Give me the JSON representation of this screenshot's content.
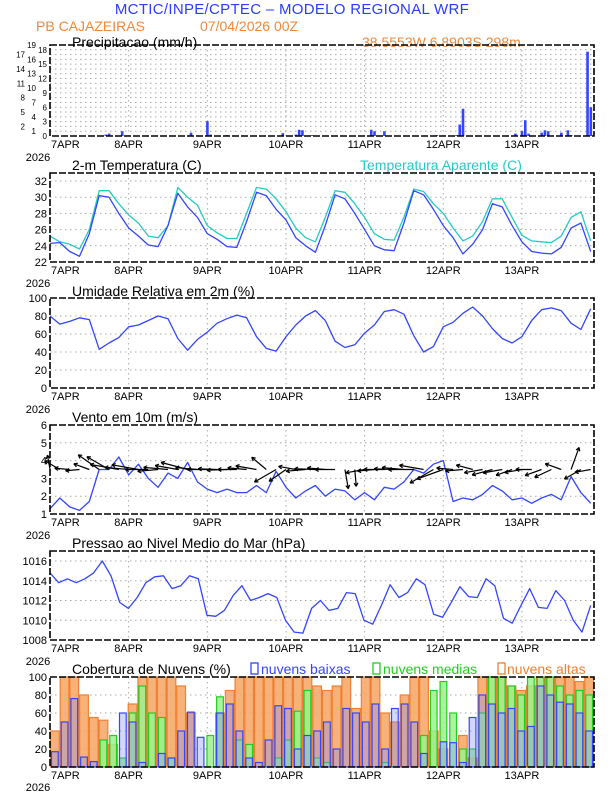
{
  "header": {
    "title": "MCTIC/INPE/CPTEC – MODELO REGIONAL WRF",
    "station": "PB CAJAZEIRAS",
    "run": "07/04/2026 00Z",
    "location": "38.5553W 6.8903S 298m"
  },
  "colors": {
    "blue": "#3346ff",
    "cyan": "#22ccc4",
    "orange_fill": "#f6a462",
    "orange_line": "#f08030",
    "green_fill": "#9ff08f",
    "green_line": "#1ed01e",
    "low_fill": "#7f8cff"
  },
  "x_axis": {
    "days": [
      "7APR",
      "8APR",
      "9APR",
      "10APR",
      "11APR",
      "12APR",
      "13APR"
    ],
    "year": "2026",
    "hours_span": 166,
    "step_hours": 3
  },
  "chart_data": [
    {
      "id": "precip",
      "type": "bar",
      "title": "Precipitacao (mm/h)",
      "ylim": [
        0,
        19
      ],
      "yticks": [
        0,
        1,
        2,
        3,
        4,
        5,
        6,
        7,
        8,
        9,
        10,
        11,
        12,
        13,
        14,
        15,
        16,
        17,
        18,
        19
      ],
      "bars": [
        [
          17,
          0.3
        ],
        [
          18,
          0.5
        ],
        [
          22,
          1.0
        ],
        [
          43,
          0.7
        ],
        [
          48,
          3.1
        ],
        [
          49,
          0.3
        ],
        [
          54,
          0.2
        ],
        [
          71,
          0.6
        ],
        [
          75,
          0.3
        ],
        [
          76,
          1.3
        ],
        [
          77,
          1.2
        ],
        [
          80,
          0.2
        ],
        [
          98,
          1.3
        ],
        [
          99,
          1.0
        ],
        [
          102,
          1.0
        ],
        [
          118,
          0.2
        ],
        [
          124,
          0.2
        ],
        [
          125,
          2.4
        ],
        [
          126,
          5.7
        ],
        [
          142,
          0.5
        ],
        [
          144,
          1.0
        ],
        [
          145,
          3.3
        ],
        [
          146,
          0.5
        ],
        [
          150,
          0.7
        ],
        [
          151,
          1.2
        ],
        [
          152,
          1.0
        ],
        [
          156,
          0.7
        ],
        [
          158,
          1.2
        ],
        [
          159,
          0.2
        ],
        [
          164,
          17.6
        ],
        [
          165,
          6.0
        ]
      ]
    },
    {
      "id": "temperature",
      "type": "line",
      "title": "2-m Temperatura (C)",
      "ylim": [
        22,
        32
      ],
      "yticks": [
        22,
        24,
        26,
        28,
        30,
        32
      ],
      "series": [
        {
          "name": "2-m Temperatura (C)",
          "values": [
            24.3,
            24.4,
            23.3,
            22.7,
            25.5,
            30.2,
            30.0,
            28.0,
            26.2,
            25.2,
            24.1,
            23.9,
            26.5,
            30.5,
            28.8,
            27.5,
            25.5,
            24.8,
            23.9,
            23.8,
            27.0,
            30.6,
            30.2,
            28.5,
            27.2,
            25.0,
            24.0,
            23.2,
            26.5,
            30.3,
            29.8,
            28.0,
            26.0,
            24.0,
            23.5,
            23.4,
            26.8,
            30.8,
            30.3,
            28.5,
            26.5,
            25.0,
            23.0,
            24.2,
            26.0,
            29.2,
            28.8,
            26.5,
            24.5,
            23.3,
            23.1,
            23.0,
            23.8,
            26.2,
            26.8,
            23.3
          ]
        },
        {
          "name": "Temperatura Aparente (C)",
          "values": [
            25.2,
            24.5,
            24.2,
            23.6,
            26.0,
            30.8,
            30.8,
            29.2,
            27.8,
            26.8,
            25.2,
            25.0,
            26.5,
            31.2,
            30.0,
            29.0,
            26.5,
            25.6,
            24.9,
            24.9,
            28.0,
            31.2,
            31.0,
            29.8,
            28.2,
            26.2,
            25.0,
            24.5,
            27.5,
            30.8,
            30.6,
            29.2,
            27.5,
            25.5,
            24.8,
            24.7,
            27.5,
            31.0,
            30.7,
            29.2,
            28.0,
            26.2,
            24.6,
            25.2,
            27.0,
            29.8,
            29.8,
            27.5,
            25.3,
            24.6,
            24.5,
            24.4,
            25.2,
            27.5,
            28.2,
            24.6
          ]
        }
      ]
    },
    {
      "id": "humidity",
      "type": "line",
      "title": "Umidade Relativa em 2m (%)",
      "ylim": [
        0,
        100
      ],
      "yticks": [
        0,
        20,
        40,
        60,
        80,
        100
      ],
      "series": [
        {
          "name": "Umidade Relativa",
          "values": [
            80,
            71,
            74,
            78,
            76,
            43,
            50,
            56,
            68,
            70,
            75,
            80,
            77,
            55,
            42,
            54,
            62,
            72,
            77,
            81,
            78,
            57,
            44,
            41,
            57,
            70,
            80,
            86,
            75,
            52,
            45,
            48,
            61,
            70,
            85,
            87,
            82,
            58,
            40,
            46,
            68,
            73,
            83,
            90,
            80,
            66,
            55,
            50,
            57,
            75,
            87,
            89,
            86,
            72,
            65,
            88
          ]
        }
      ]
    },
    {
      "id": "wind",
      "type": "line",
      "title": "Vento em 10m (m/s)",
      "ylim": [
        1,
        6
      ],
      "yticks": [
        1,
        2,
        3,
        4,
        5,
        6
      ],
      "series": [
        {
          "name": "Velocidade",
          "values": [
            1.3,
            1.9,
            1.4,
            1.2,
            1.7,
            3.5,
            3.5,
            4.2,
            3.2,
            3.8,
            3.0,
            2.5,
            3.3,
            3.0,
            3.9,
            2.8,
            2.4,
            2.2,
            2.4,
            2.2,
            2.2,
            2.6,
            2.2,
            3.4,
            2.5,
            1.9,
            2.3,
            2.6,
            2.0,
            2.4,
            2.3,
            1.8,
            2.2,
            1.8,
            2.5,
            2.4,
            2.8,
            3.5,
            3.3,
            3.8,
            4.0,
            1.7,
            1.9,
            1.8,
            2.1,
            2.6,
            2.3,
            1.8,
            1.9,
            1.6,
            1.9,
            2.1,
            1.8,
            3.1,
            2.2,
            1.6
          ]
        }
      ],
      "direction_deg": [
        170,
        120,
        95,
        85,
        110,
        125,
        120,
        100,
        95,
        100,
        90,
        85,
        95,
        100,
        105,
        95,
        90,
        92,
        88,
        90,
        95,
        100,
        130,
        60,
        55,
        100,
        85,
        92,
        95,
        90,
        350,
        355,
        80,
        85,
        90,
        92,
        95,
        90,
        100,
        60,
        70,
        95,
        85,
        105,
        80,
        75,
        80,
        70,
        80,
        90,
        70,
        65,
        110,
        200,
        60,
        80
      ]
    },
    {
      "id": "pressure",
      "type": "line",
      "title": "Pressao ao Nivel Medio do Mar (hPa)",
      "ylim": [
        1008,
        1017
      ],
      "yticks": [
        1008,
        1010,
        1012,
        1014,
        1016
      ],
      "series": [
        {
          "name": "Pressao",
          "values": [
            1014.8,
            1013.8,
            1014.2,
            1013.8,
            1014.2,
            1014.8,
            1016.0,
            1014.5,
            1011.8,
            1011.2,
            1012.3,
            1013.8,
            1014.4,
            1014.5,
            1013.2,
            1013.5,
            1014.5,
            1014.2,
            1010.5,
            1010.4,
            1011.0,
            1012.5,
            1013.5,
            1012.0,
            1012.3,
            1012.7,
            1012.3,
            1010.0,
            1008.8,
            1008.7,
            1011.2,
            1012.0,
            1011.0,
            1011.2,
            1012.8,
            1012.7,
            1010.0,
            1009.6,
            1011.5,
            1013.6,
            1012.3,
            1012.8,
            1014.2,
            1013.6,
            1010.6,
            1010.3,
            1011.8,
            1013.4,
            1012.4,
            1012.3,
            1014.2,
            1013.5,
            1010.2,
            1009.7,
            1011.5,
            1013.2,
            1011.3,
            1011.2,
            1013.0,
            1012.0,
            1010.0,
            1008.8,
            1011.5
          ]
        }
      ]
    },
    {
      "id": "clouds",
      "type": "bar",
      "title": "Cobertura de Nuvens (%)",
      "ylim": [
        0,
        100
      ],
      "yticks": [
        0,
        20,
        40,
        60,
        80,
        100
      ],
      "series": [
        {
          "name": "nuvens altas",
          "values": [
            40,
            100,
            100,
            80,
            55,
            52,
            25,
            0,
            70,
            100,
            100,
            100,
            100,
            90,
            60,
            0,
            0,
            60,
            85,
            100,
            100,
            100,
            100,
            100,
            100,
            100,
            100,
            90,
            85,
            90,
            100,
            65,
            100,
            100,
            60,
            50,
            80,
            100,
            100,
            40,
            20,
            0,
            35,
            10,
            100,
            100,
            100,
            90,
            85,
            90,
            100,
            100,
            100,
            100,
            95,
            100
          ]
        },
        {
          "name": "nuvens medias",
          "values": [
            0,
            0,
            0,
            0,
            0,
            30,
            35,
            10,
            60,
            90,
            60,
            55,
            10,
            0,
            0,
            0,
            35,
            78,
            0,
            30,
            25,
            0,
            0,
            10,
            30,
            62,
            85,
            10,
            5,
            0,
            0,
            0,
            0,
            0,
            5,
            0,
            0,
            0,
            35,
            85,
            95,
            60,
            20,
            20,
            60,
            100,
            100,
            90,
            80,
            100,
            100,
            100,
            90,
            80,
            85,
            80
          ]
        },
        {
          "name": "nuvens baixas",
          "values": [
            17,
            50,
            76,
            11,
            6,
            0,
            0,
            60,
            50,
            5,
            0,
            15,
            10,
            40,
            61,
            33,
            0,
            60,
            70,
            40,
            10,
            5,
            30,
            68,
            65,
            20,
            35,
            40,
            50,
            20,
            65,
            60,
            50,
            70,
            20,
            65,
            70,
            50,
            15,
            0,
            28,
            27,
            5,
            55,
            80,
            70,
            60,
            65,
            40,
            45,
            90,
            80,
            72,
            70,
            60,
            40
          ]
        }
      ]
    }
  ]
}
